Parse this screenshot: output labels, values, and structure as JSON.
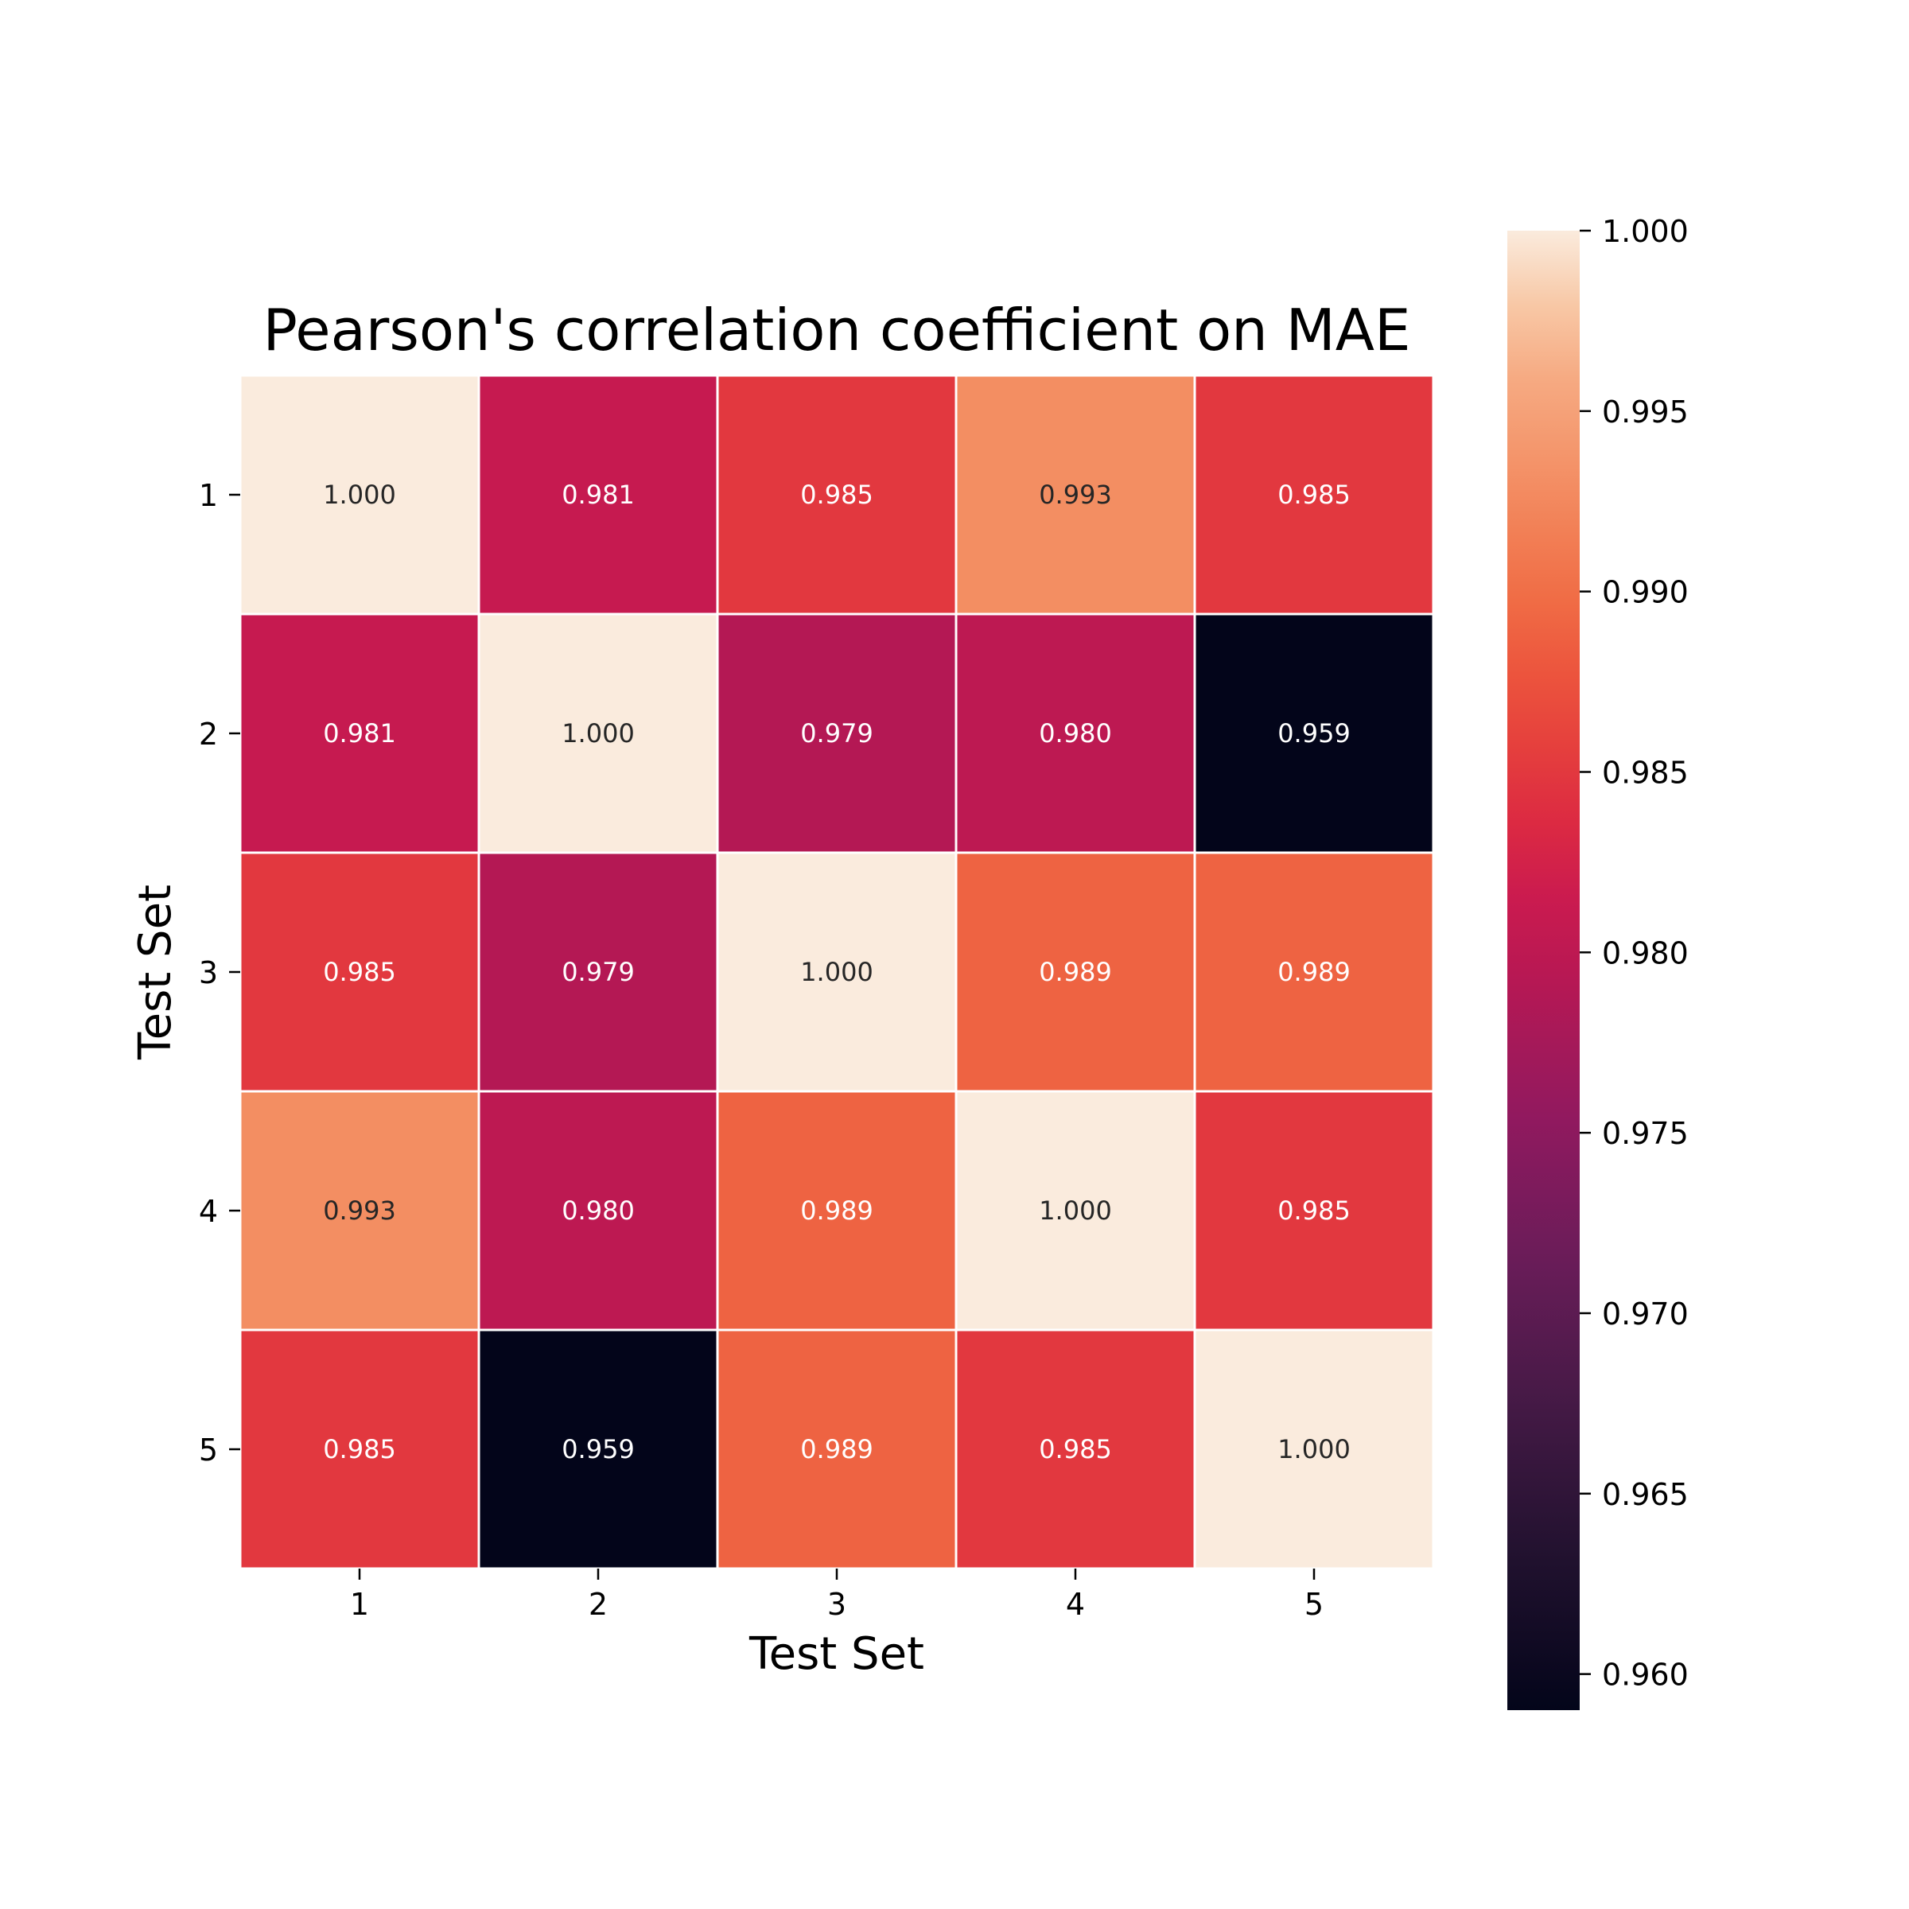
{
  "chart_data": {
    "type": "heatmap",
    "title": "Pearson's correlation coefficient on MAE",
    "xlabel": "Test Set",
    "ylabel": "Test Set",
    "x_categories": [
      "1",
      "2",
      "3",
      "4",
      "5"
    ],
    "y_categories": [
      "1",
      "2",
      "3",
      "4",
      "5"
    ],
    "values": [
      [
        1.0,
        0.981,
        0.985,
        0.993,
        0.985
      ],
      [
        0.981,
        1.0,
        0.979,
        0.98,
        0.959
      ],
      [
        0.985,
        0.979,
        1.0,
        0.989,
        0.989
      ],
      [
        0.993,
        0.98,
        0.989,
        1.0,
        0.985
      ],
      [
        0.985,
        0.959,
        0.989,
        0.985,
        1.0
      ]
    ],
    "annotations": [
      [
        "1.000",
        "0.981",
        "0.985",
        "0.993",
        "0.985"
      ],
      [
        "0.981",
        "1.000",
        "0.979",
        "0.980",
        "0.959"
      ],
      [
        "0.985",
        "0.979",
        "1.000",
        "0.989",
        "0.989"
      ],
      [
        "0.993",
        "0.980",
        "0.989",
        "1.000",
        "0.985"
      ],
      [
        "0.985",
        "0.959",
        "0.989",
        "0.985",
        "1.000"
      ]
    ],
    "colorbar": {
      "range": [
        0.959,
        1.0
      ],
      "ticks": [
        0.96,
        0.965,
        0.97,
        0.975,
        0.98,
        0.985,
        0.99,
        0.995,
        1.0
      ],
      "tick_labels": [
        "0.960",
        "0.965",
        "0.970",
        "0.975",
        "0.980",
        "0.985",
        "0.990",
        "0.995",
        "1.000"
      ],
      "colormap": "rocket",
      "placement": "right"
    },
    "grid": false
  }
}
